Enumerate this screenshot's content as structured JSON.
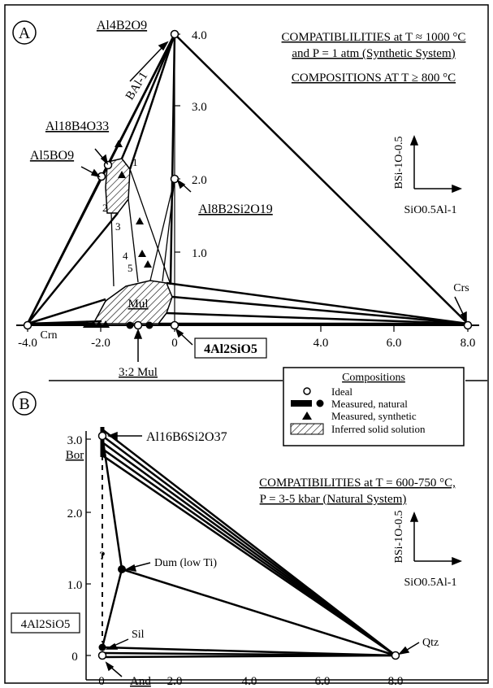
{
  "panel_a": {
    "label": "A",
    "title_line1": "COMPATIBLILITIES at T ≈ 1000 °C",
    "title_line2": "and P = 1 atm (Synthetic System)",
    "subtitle": "COMPOSITIONS AT T ≥ 800 °C",
    "axis_y_label": "BSi-1O-0.5",
    "axis_x_label": "SiO0.5Al-1",
    "x_ticks": [
      "-4.0",
      "-2.0",
      "0",
      "4.0",
      "6.0",
      "8.0"
    ],
    "y_ticks": [
      "1.0",
      "2.0",
      "3.0",
      "4.0"
    ],
    "labels": {
      "al4b2o9": "Al4B2O9",
      "bal": "BAl-1",
      "al18b4o33": "Al18B4O33",
      "al5bo9": "Al5BO9",
      "al8b2si2o19": "Al8B2Si2O19",
      "crs": "Crs",
      "crn": "Crn",
      "mul": "Mul",
      "mul32": "3:2 Mul",
      "al2sio5": "4Al2SiO5",
      "n1": "1",
      "n2": "2",
      "n3": "3",
      "n4": "4",
      "n5": "5"
    }
  },
  "legend": {
    "title": "Compositions",
    "items": [
      "Ideal",
      "Measured, natural",
      "Measured, synthetic",
      "Inferred solid solution"
    ]
  },
  "panel_b": {
    "label": "B",
    "title_line1": "COMPATIBILITIES at T = 600-750 °C,",
    "title_line2": "P = 3-5 kbar (Natural System)",
    "axis_y_label": "BSi-1O-0.5",
    "axis_x_label": "SiO0.5Al-1",
    "x_ticks": [
      "0",
      "2.0",
      "4.0",
      "6.0",
      "8.0"
    ],
    "y_ticks": [
      "0",
      "1.0",
      "2.0",
      "3.0"
    ],
    "labels": {
      "al16": "Al16B6Si2O37",
      "bor": "Bor",
      "dum": "Dum (low Ti)",
      "question": "?",
      "al2sio5": "4Al2SiO5",
      "sil": "Sil",
      "and": "And",
      "qtz": "Qtz"
    }
  }
}
